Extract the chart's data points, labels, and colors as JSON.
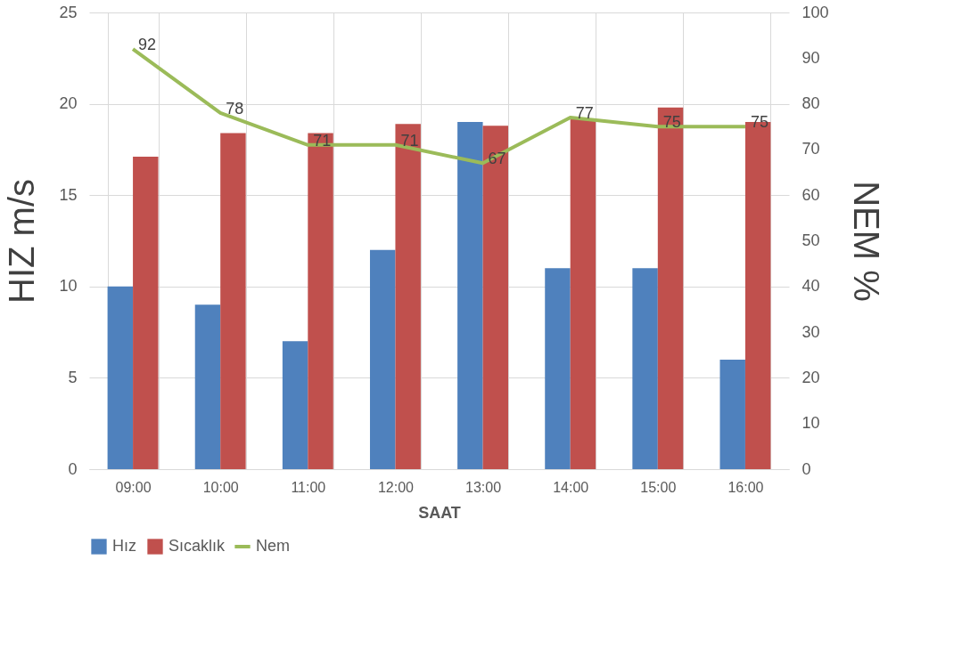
{
  "chart_data": {
    "type": "bar",
    "xlabel": "SAAT",
    "ylabel": "HIZ m/s",
    "y2label": "NEM %",
    "categories": [
      "09:00",
      "10:00",
      "11:00",
      "12:00",
      "13:00",
      "14:00",
      "15:00",
      "16:00"
    ],
    "series": [
      {
        "name": "Hız",
        "color": "#4f81bd",
        "values": [
          10,
          9,
          7,
          12,
          19,
          11,
          11,
          6
        ]
      },
      {
        "name": "Sıcaklık",
        "color": "#c0504d",
        "values": [
          17.1,
          18.4,
          18.4,
          18.9,
          18.8,
          19.2,
          19.8,
          19.0
        ]
      },
      {
        "name": "Nem",
        "type": "line",
        "axis": "y2",
        "color": "#9bbb59",
        "values": [
          92,
          78,
          71,
          71,
          67,
          77,
          75,
          75
        ],
        "value_labels": [
          "92",
          "78",
          "71",
          "71",
          "67",
          "77",
          "75",
          "75"
        ]
      }
    ],
    "ylim": [
      0,
      25
    ],
    "yticks": [
      0,
      5,
      10,
      15,
      20,
      25
    ],
    "y2lim": [
      0,
      100
    ],
    "y2ticks": [
      0,
      10,
      20,
      30,
      40,
      50,
      60,
      70,
      80,
      90,
      100
    ],
    "grid": true,
    "legend": "bottom"
  }
}
